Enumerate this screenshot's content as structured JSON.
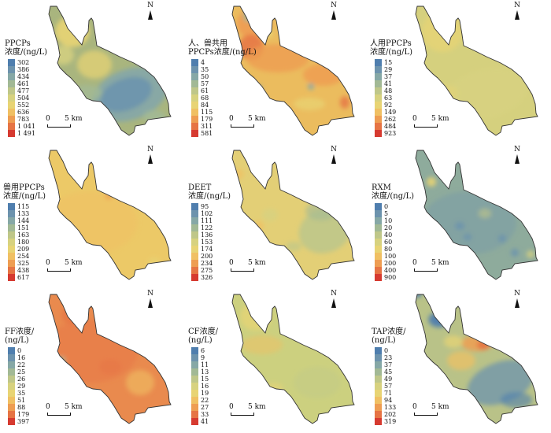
{
  "north_label": "N",
  "scale": {
    "zero": "0",
    "distance": "5 km"
  },
  "colors": {
    "outline": "#333333"
  },
  "panels": [
    {
      "id": "pp",
      "title_lines": [
        "PPCPs",
        "浓度/(ng/L)"
      ],
      "base": "#a9b57e",
      "legend": [
        {
          "label": "302",
          "color": "#4f7eae"
        },
        {
          "label": "386",
          "color": "#6d93ad"
        },
        {
          "label": "434",
          "color": "#86a8a6"
        },
        {
          "label": "461",
          "color": "#a2b995"
        },
        {
          "label": "477",
          "color": "#bfc789"
        },
        {
          "label": "504",
          "color": "#d7d27f"
        },
        {
          "label": "552",
          "color": "#e8d474"
        },
        {
          "label": "636",
          "color": "#f0c063"
        },
        {
          "label": "783",
          "color": "#ee9d52"
        },
        {
          "label": "1 041",
          "color": "#e67444"
        },
        {
          "label": "1 491",
          "color": "#d63a30"
        }
      ]
    },
    {
      "id": "hv",
      "title_lines": [
        "人、兽共用",
        "PPCPs浓度/(ng/L)"
      ],
      "base": "#ebbc5e",
      "legend": [
        {
          "label": "4",
          "color": "#4f7eae"
        },
        {
          "label": "35",
          "color": "#6d93ad"
        },
        {
          "label": "50",
          "color": "#86a8a6"
        },
        {
          "label": "57",
          "color": "#a2b995"
        },
        {
          "label": "61",
          "color": "#bfc789"
        },
        {
          "label": "68",
          "color": "#d7d27f"
        },
        {
          "label": "84",
          "color": "#e8d474"
        },
        {
          "label": "115",
          "color": "#f0c063"
        },
        {
          "label": "179",
          "color": "#ee9d52"
        },
        {
          "label": "311",
          "color": "#e67444"
        },
        {
          "label": "581",
          "color": "#d63a30"
        }
      ]
    },
    {
      "id": "hu",
      "title_lines": [
        "人用PPCPs",
        "浓度/(ng/L)"
      ],
      "base": "#d5d07e",
      "legend": [
        {
          "label": "15",
          "color": "#4f7eae"
        },
        {
          "label": "29",
          "color": "#6d93ad"
        },
        {
          "label": "37",
          "color": "#86a8a6"
        },
        {
          "label": "41",
          "color": "#a2b995"
        },
        {
          "label": "48",
          "color": "#bfc789"
        },
        {
          "label": "63",
          "color": "#d7d27f"
        },
        {
          "label": "92",
          "color": "#e8d474"
        },
        {
          "label": "149",
          "color": "#f0c063"
        },
        {
          "label": "262",
          "color": "#ee9d52"
        },
        {
          "label": "484",
          "color": "#e67444"
        },
        {
          "label": "923",
          "color": "#d63a30"
        }
      ]
    },
    {
      "id": "vet",
      "title_lines": [
        "兽用PPCPs",
        "浓度/(ng/L)"
      ],
      "base": "#ecc967",
      "legend": [
        {
          "label": "115",
          "color": "#4f7eae"
        },
        {
          "label": "133",
          "color": "#6d93ad"
        },
        {
          "label": "144",
          "color": "#86a8a6"
        },
        {
          "label": "151",
          "color": "#a2b995"
        },
        {
          "label": "163",
          "color": "#bfc789"
        },
        {
          "label": "180",
          "color": "#d7d27f"
        },
        {
          "label": "209",
          "color": "#e8d474"
        },
        {
          "label": "254",
          "color": "#f0c063"
        },
        {
          "label": "325",
          "color": "#ee9d52"
        },
        {
          "label": "438",
          "color": "#e67444"
        },
        {
          "label": "617",
          "color": "#d63a30"
        }
      ]
    },
    {
      "id": "deet",
      "title_lines": [
        "DEET",
        "浓度/(ng/L)"
      ],
      "base": "#e3cf76",
      "legend": [
        {
          "label": "95",
          "color": "#4f7eae"
        },
        {
          "label": "102",
          "color": "#6d93ad"
        },
        {
          "label": "111",
          "color": "#86a8a6"
        },
        {
          "label": "122",
          "color": "#a2b995"
        },
        {
          "label": "136",
          "color": "#bfc789"
        },
        {
          "label": "153",
          "color": "#d7d27f"
        },
        {
          "label": "174",
          "color": "#e8d474"
        },
        {
          "label": "200",
          "color": "#f0c063"
        },
        {
          "label": "234",
          "color": "#ee9d52"
        },
        {
          "label": "275",
          "color": "#e67444"
        },
        {
          "label": "326",
          "color": "#d63a30"
        }
      ]
    },
    {
      "id": "rxm",
      "title_lines": [
        "RXM",
        "浓度/(ng/L)"
      ],
      "base": "#8eab9c",
      "legend": [
        {
          "label": "0",
          "color": "#4f7eae"
        },
        {
          "label": "5",
          "color": "#6d93ad"
        },
        {
          "label": "10",
          "color": "#86a8a6"
        },
        {
          "label": "20",
          "color": "#a2b995"
        },
        {
          "label": "40",
          "color": "#bfc789"
        },
        {
          "label": "60",
          "color": "#d7d27f"
        },
        {
          "label": "80",
          "color": "#e8d474"
        },
        {
          "label": "100",
          "color": "#f0c063"
        },
        {
          "label": "200",
          "color": "#ee9d52"
        },
        {
          "label": "400",
          "color": "#e67444"
        },
        {
          "label": "900",
          "color": "#d63a30"
        }
      ]
    },
    {
      "id": "ff",
      "title_lines": [
        "FF浓度/",
        "(ng/L)"
      ],
      "base": "#e98a4e",
      "legend": [
        {
          "label": "0",
          "color": "#4f7eae"
        },
        {
          "label": "16",
          "color": "#6d93ad"
        },
        {
          "label": "22",
          "color": "#86a8a6"
        },
        {
          "label": "25",
          "color": "#a2b995"
        },
        {
          "label": "26",
          "color": "#bfc789"
        },
        {
          "label": "29",
          "color": "#d7d27f"
        },
        {
          "label": "35",
          "color": "#e8d474"
        },
        {
          "label": "51",
          "color": "#f0c063"
        },
        {
          "label": "88",
          "color": "#ee9d52"
        },
        {
          "label": "179",
          "color": "#e67444"
        },
        {
          "label": "397",
          "color": "#d63a30"
        }
      ]
    },
    {
      "id": "cf",
      "title_lines": [
        "CF浓度/",
        "(ng/L)"
      ],
      "base": "#ccd07f",
      "legend": [
        {
          "label": "6",
          "color": "#4f7eae"
        },
        {
          "label": "9",
          "color": "#6d93ad"
        },
        {
          "label": "11",
          "color": "#86a8a6"
        },
        {
          "label": "13",
          "color": "#a2b995"
        },
        {
          "label": "15",
          "color": "#bfc789"
        },
        {
          "label": "16",
          "color": "#d7d27f"
        },
        {
          "label": "19",
          "color": "#e8d474"
        },
        {
          "label": "22",
          "color": "#f0c063"
        },
        {
          "label": "27",
          "color": "#ee9d52"
        },
        {
          "label": "33",
          "color": "#e67444"
        },
        {
          "label": "41",
          "color": "#d63a30"
        }
      ]
    },
    {
      "id": "tap",
      "title_lines": [
        "TAP浓度/",
        "(ng/L)"
      ],
      "base": "#b9c288",
      "legend": [
        {
          "label": "0",
          "color": "#4f7eae"
        },
        {
          "label": "23",
          "color": "#6d93ad"
        },
        {
          "label": "37",
          "color": "#86a8a6"
        },
        {
          "label": "45",
          "color": "#a2b995"
        },
        {
          "label": "49",
          "color": "#bfc789"
        },
        {
          "label": "57",
          "color": "#d7d27f"
        },
        {
          "label": "71",
          "color": "#e8d474"
        },
        {
          "label": "94",
          "color": "#f0c063"
        },
        {
          "label": "133",
          "color": "#ee9d52"
        },
        {
          "label": "202",
          "color": "#e67444"
        },
        {
          "label": "319",
          "color": "#d63a30"
        }
      ]
    }
  ]
}
